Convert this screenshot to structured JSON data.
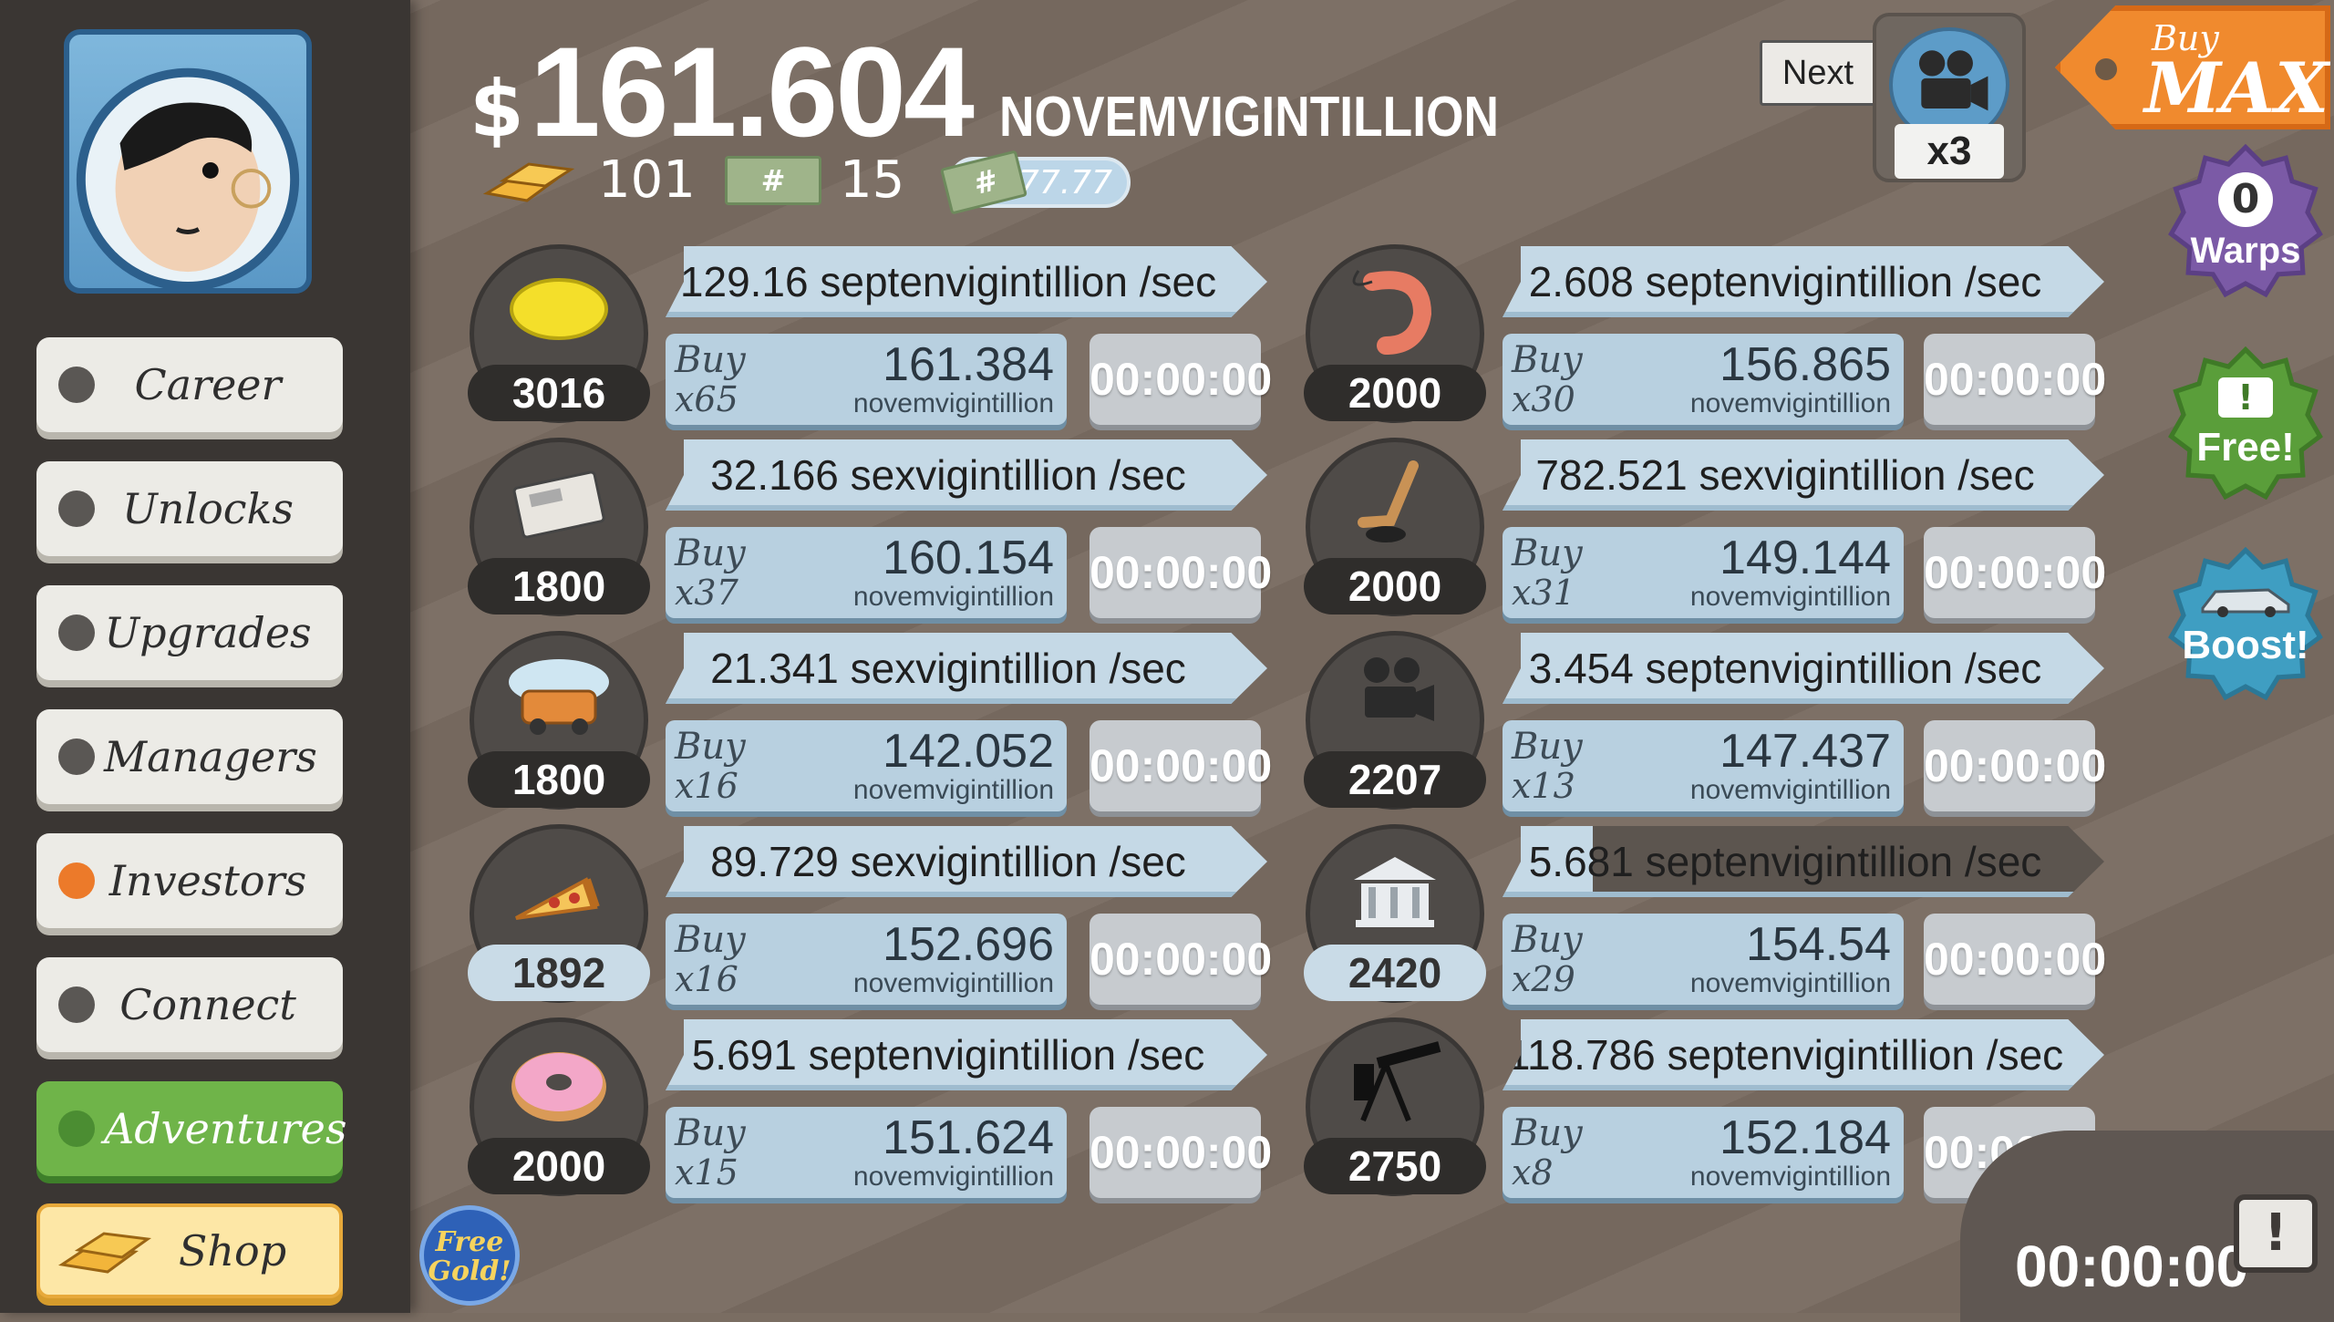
{
  "header": {
    "currency_symbol": "$",
    "amount": "161.604",
    "unit": "NOVEMVIGINTILLION",
    "gold": "101",
    "megabucks_icon": "#",
    "megabucks": "15",
    "multiplier_icon": "#",
    "multiplier": "x777.77"
  },
  "sidebar": {
    "items": [
      {
        "label": "Career",
        "name": "career"
      },
      {
        "label": "Unlocks",
        "name": "unlocks"
      },
      {
        "label": "Upgrades",
        "name": "upgrades"
      },
      {
        "label": "Managers",
        "name": "managers"
      },
      {
        "label": "Investors",
        "name": "investors"
      },
      {
        "label": "Connect",
        "name": "connect"
      },
      {
        "label": "Adventures",
        "name": "adventures"
      },
      {
        "label": "Shop",
        "name": "shop"
      }
    ]
  },
  "businesses": [
    {
      "icon": "lemon-icon",
      "count": "3016",
      "rate": "129.16 septenvigintillion /sec",
      "buy": "Buy",
      "mult": "x65",
      "cost": "161.384",
      "cost_unit": "novemvigintillion",
      "timer": "00:00:00"
    },
    {
      "icon": "shrimp-icon",
      "count": "2000",
      "rate": "2.608 septenvigintillion /sec",
      "buy": "Buy",
      "mult": "x30",
      "cost": "156.865",
      "cost_unit": "novemvigintillion",
      "timer": "00:00:00"
    },
    {
      "icon": "newspaper-icon",
      "count": "1800",
      "rate": "32.166 sexvigintillion /sec",
      "buy": "Buy",
      "mult": "x37",
      "cost": "160.154",
      "cost_unit": "novemvigintillion",
      "timer": "00:00:00"
    },
    {
      "icon": "hockey-icon",
      "count": "2000",
      "rate": "782.521 sexvigintillion /sec",
      "buy": "Buy",
      "mult": "x31",
      "cost": "149.144",
      "cost_unit": "novemvigintillion",
      "timer": "00:00:00"
    },
    {
      "icon": "car-wash-icon",
      "count": "1800",
      "rate": "21.341 sexvigintillion /sec",
      "buy": "Buy",
      "mult": "x16",
      "cost": "142.052",
      "cost_unit": "novemvigintillion",
      "timer": "00:00:00"
    },
    {
      "icon": "movie-camera-icon",
      "count": "2207",
      "rate": "3.454 septenvigintillion /sec",
      "buy": "Buy",
      "mult": "x13",
      "cost": "147.437",
      "cost_unit": "novemvigintillion",
      "timer": "00:00:00"
    },
    {
      "icon": "pizza-icon",
      "count": "1892",
      "rate": "89.729 sexvigintillion /sec",
      "buy": "Buy",
      "mult": "x16",
      "cost": "152.696",
      "cost_unit": "novemvigintillion",
      "timer": "00:00:00"
    },
    {
      "icon": "bank-icon",
      "count": "2420",
      "rate": "5.681 septenvigintillion /sec",
      "buy": "Buy",
      "mult": "x29",
      "cost": "154.54",
      "cost_unit": "novemvigintillion",
      "timer": "00:00:00"
    },
    {
      "icon": "donut-icon",
      "count": "2000",
      "rate": "5.691 septenvigintillion /sec",
      "buy": "Buy",
      "mult": "x15",
      "cost": "151.624",
      "cost_unit": "novemvigintillion",
      "timer": "00:00:00"
    },
    {
      "icon": "oil-rig-icon",
      "count": "2750",
      "rate": "118.786 septenvigintillion /sec",
      "buy": "Buy",
      "mult": "x8",
      "cost": "152.184",
      "cost_unit": "novemvigintillion",
      "timer": "00:00:00"
    }
  ],
  "progress": {
    "bank_rate_fill": 0.15
  },
  "right": {
    "next_label": "Next",
    "milestone_mult": "x3",
    "buy_label": "Buy",
    "max_label": "MAX",
    "warps_count": "0",
    "warps_label": "Warps",
    "free_label": "Free!",
    "boost_label": "Boost!",
    "tv_timer": "00:00:00",
    "tv_alert": "!"
  },
  "free_gold": {
    "line1": "Free",
    "line2": "Gold!"
  },
  "colors": {
    "accent_orange": "#f08a2e",
    "rate_blue": "#c5d9e6",
    "adventures_green": "#6fb449",
    "warps_purple": "#7b5aa6",
    "free_green": "#5a9e3a",
    "boost_teal": "#3f9ec2"
  }
}
